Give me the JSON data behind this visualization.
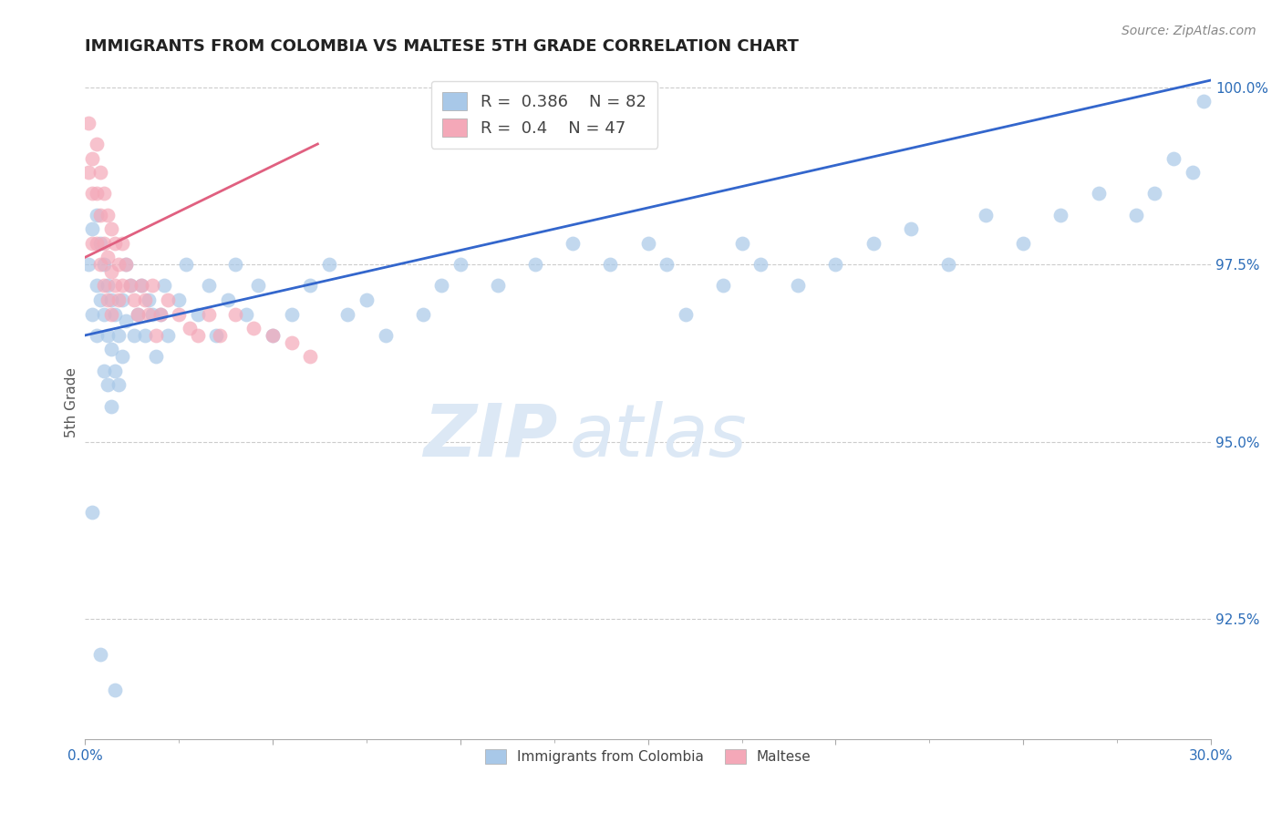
{
  "title": "IMMIGRANTS FROM COLOMBIA VS MALTESE 5TH GRADE CORRELATION CHART",
  "source_text": "Source: ZipAtlas.com",
  "ylabel": "5th Grade",
  "xlim": [
    0.0,
    0.3
  ],
  "ylim": [
    0.908,
    1.003
  ],
  "yticks": [
    0.925,
    0.95,
    0.975,
    1.0
  ],
  "ytick_labels": [
    "92.5%",
    "95.0%",
    "97.5%",
    "100.0%"
  ],
  "xticks": [
    0.0,
    0.05,
    0.1,
    0.15,
    0.2,
    0.25,
    0.3
  ],
  "xtick_labels_show": [
    "0.0%",
    "30.0%"
  ],
  "legend_blue_label": "Immigrants from Colombia",
  "legend_pink_label": "Maltese",
  "R_blue": 0.386,
  "N_blue": 82,
  "R_pink": 0.4,
  "N_pink": 47,
  "blue_color": "#a8c8e8",
  "pink_color": "#f4a8b8",
  "blue_line_color": "#3366cc",
  "pink_line_color": "#e06080",
  "watermark_zip": "ZIP",
  "watermark_atlas": "atlas",
  "watermark_color": "#dce8f5",
  "grid_color": "#cccccc",
  "blue_scatter_x": [
    0.001,
    0.002,
    0.002,
    0.003,
    0.003,
    0.003,
    0.004,
    0.004,
    0.005,
    0.005,
    0.005,
    0.006,
    0.006,
    0.006,
    0.007,
    0.007,
    0.007,
    0.008,
    0.008,
    0.009,
    0.009,
    0.01,
    0.01,
    0.011,
    0.011,
    0.012,
    0.013,
    0.014,
    0.015,
    0.016,
    0.017,
    0.018,
    0.019,
    0.02,
    0.021,
    0.022,
    0.025,
    0.027,
    0.03,
    0.033,
    0.035,
    0.038,
    0.04,
    0.043,
    0.046,
    0.05,
    0.055,
    0.06,
    0.065,
    0.07,
    0.075,
    0.08,
    0.09,
    0.095,
    0.1,
    0.11,
    0.12,
    0.13,
    0.14,
    0.15,
    0.155,
    0.16,
    0.17,
    0.175,
    0.18,
    0.19,
    0.2,
    0.21,
    0.22,
    0.23,
    0.24,
    0.25,
    0.26,
    0.27,
    0.28,
    0.285,
    0.29,
    0.295,
    0.298,
    0.002,
    0.004,
    0.008
  ],
  "blue_scatter_y": [
    0.975,
    0.98,
    0.968,
    0.982,
    0.972,
    0.965,
    0.978,
    0.97,
    0.975,
    0.968,
    0.96,
    0.972,
    0.965,
    0.958,
    0.97,
    0.963,
    0.955,
    0.968,
    0.96,
    0.965,
    0.958,
    0.97,
    0.962,
    0.975,
    0.967,
    0.972,
    0.965,
    0.968,
    0.972,
    0.965,
    0.97,
    0.968,
    0.962,
    0.968,
    0.972,
    0.965,
    0.97,
    0.975,
    0.968,
    0.972,
    0.965,
    0.97,
    0.975,
    0.968,
    0.972,
    0.965,
    0.968,
    0.972,
    0.975,
    0.968,
    0.97,
    0.965,
    0.968,
    0.972,
    0.975,
    0.972,
    0.975,
    0.978,
    0.975,
    0.978,
    0.975,
    0.968,
    0.972,
    0.978,
    0.975,
    0.972,
    0.975,
    0.978,
    0.98,
    0.975,
    0.982,
    0.978,
    0.982,
    0.985,
    0.982,
    0.985,
    0.99,
    0.988,
    0.998,
    0.94,
    0.92,
    0.915
  ],
  "pink_scatter_x": [
    0.001,
    0.001,
    0.002,
    0.002,
    0.002,
    0.003,
    0.003,
    0.003,
    0.004,
    0.004,
    0.004,
    0.005,
    0.005,
    0.005,
    0.006,
    0.006,
    0.006,
    0.007,
    0.007,
    0.007,
    0.008,
    0.008,
    0.009,
    0.009,
    0.01,
    0.01,
    0.011,
    0.012,
    0.013,
    0.014,
    0.015,
    0.016,
    0.017,
    0.018,
    0.019,
    0.02,
    0.022,
    0.025,
    0.028,
    0.03,
    0.033,
    0.036,
    0.04,
    0.045,
    0.05,
    0.055,
    0.06
  ],
  "pink_scatter_y": [
    0.988,
    0.995,
    0.99,
    0.985,
    0.978,
    0.992,
    0.985,
    0.978,
    0.988,
    0.982,
    0.975,
    0.985,
    0.978,
    0.972,
    0.982,
    0.976,
    0.97,
    0.98,
    0.974,
    0.968,
    0.978,
    0.972,
    0.975,
    0.97,
    0.978,
    0.972,
    0.975,
    0.972,
    0.97,
    0.968,
    0.972,
    0.97,
    0.968,
    0.972,
    0.965,
    0.968,
    0.97,
    0.968,
    0.966,
    0.965,
    0.968,
    0.965,
    0.968,
    0.966,
    0.965,
    0.964,
    0.962
  ],
  "blue_trendline_x": [
    0.0,
    0.3
  ],
  "blue_trendline_y": [
    0.965,
    1.001
  ],
  "pink_trendline_x": [
    0.0,
    0.062
  ],
  "pink_trendline_y": [
    0.976,
    0.992
  ]
}
